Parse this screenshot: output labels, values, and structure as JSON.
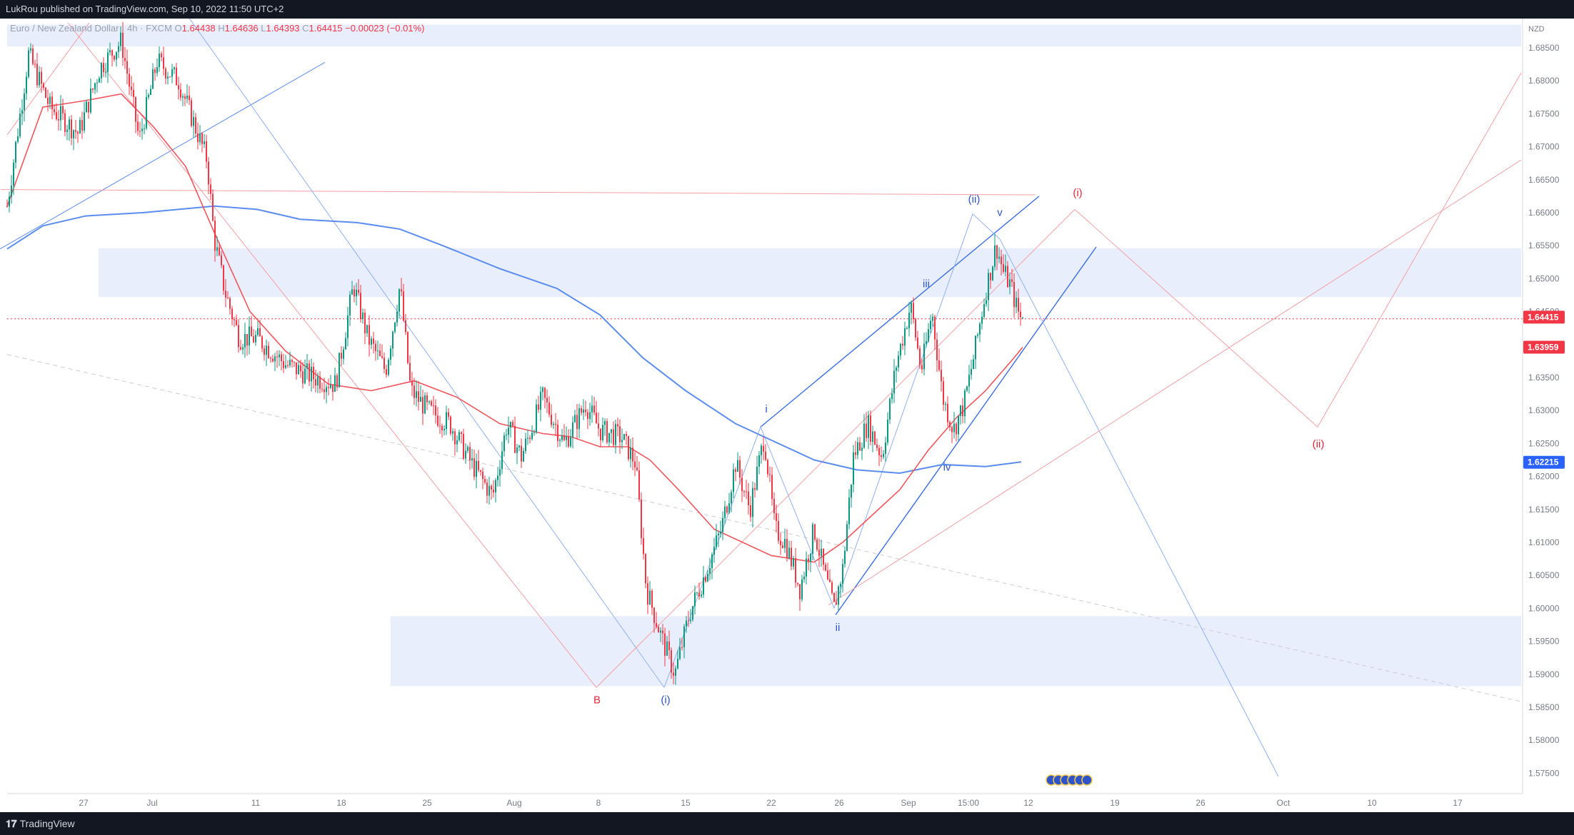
{
  "header": {
    "publisher": "LukRou published on TradingView.com, Sep 10, 2022 11:50 UTC+2"
  },
  "footer": {
    "brand": "TradingView"
  },
  "symbol": {
    "name": "Euro / New Zealand Dollar",
    "interval": "4h",
    "exchange": "FXCM",
    "open_label": "O",
    "open": "1.64438",
    "high_label": "H",
    "high": "1.64636",
    "low_label": "L",
    "low": "1.64393",
    "close_label": "C",
    "close": "1.64415",
    "change": "−0.00023 (−0.01%)"
  },
  "colors": {
    "up": "#089981",
    "down": "#f23645",
    "ma_red": "#f0565c",
    "ma_blue": "#5b8def",
    "zone": "#e8eefc",
    "wave_blue": "#2f54c7",
    "wave_red": "#e0263a"
  },
  "chart_data": {
    "type": "candlestick",
    "currency": "NZD",
    "ylim": [
      1.5745,
      1.689
    ],
    "y_ticks": [
      "1.68500",
      "1.68000",
      "1.67500",
      "1.67000",
      "1.66500",
      "1.66000",
      "1.65500",
      "1.65000",
      "1.64500",
      "1.64000",
      "1.63500",
      "1.63000",
      "1.62500",
      "1.62000",
      "1.61500",
      "1.61000",
      "1.60500",
      "1.60000",
      "1.59500",
      "1.59000",
      "1.58500",
      "1.58000",
      "1.57500"
    ],
    "x_labels": [
      {
        "label": "27",
        "x": 117
      },
      {
        "label": "Jul",
        "x": 213
      },
      {
        "label": "11",
        "x": 358
      },
      {
        "label": "18",
        "x": 478
      },
      {
        "label": "25",
        "x": 598
      },
      {
        "label": "Aug",
        "x": 720
      },
      {
        "label": "8",
        "x": 838
      },
      {
        "label": "15",
        "x": 960
      },
      {
        "label": "22",
        "x": 1080
      },
      {
        "label": "26",
        "x": 1175
      },
      {
        "label": "Sep",
        "x": 1272
      },
      {
        "label": "15:00",
        "x": 1356
      },
      {
        "label": "12",
        "x": 1440
      },
      {
        "label": "19",
        "x": 1561
      },
      {
        "label": "26",
        "x": 1681
      },
      {
        "label": "Oct",
        "x": 1797
      },
      {
        "label": "10",
        "x": 1921
      },
      {
        "label": "17",
        "x": 2041
      }
    ],
    "price_labels": [
      {
        "value": "1.64415",
        "price": 1.64415,
        "color": "#f23645"
      },
      {
        "value": "1.63959",
        "price": 1.63959,
        "color": "#f23645"
      },
      {
        "value": "1.62215",
        "price": 1.62215,
        "color": "#2962ff"
      }
    ],
    "close_path": [
      [
        10,
        1.661
      ],
      [
        40,
        1.684
      ],
      [
        70,
        1.676
      ],
      [
        110,
        1.672
      ],
      [
        140,
        1.682
      ],
      [
        170,
        1.686
      ],
      [
        195,
        1.671
      ],
      [
        220,
        1.683
      ],
      [
        250,
        1.68
      ],
      [
        270,
        1.674
      ],
      [
        290,
        1.668
      ],
      [
        300,
        1.656
      ],
      [
        315,
        1.648
      ],
      [
        335,
        1.641
      ],
      [
        360,
        1.641
      ],
      [
        400,
        1.637
      ],
      [
        440,
        1.635
      ],
      [
        470,
        1.634
      ],
      [
        495,
        1.649
      ],
      [
        515,
        1.641
      ],
      [
        540,
        1.636
      ],
      [
        560,
        1.649
      ],
      [
        575,
        1.633
      ],
      [
        600,
        1.63
      ],
      [
        630,
        1.628
      ],
      [
        660,
        1.622
      ],
      [
        690,
        1.617
      ],
      [
        710,
        1.628
      ],
      [
        730,
        1.623
      ],
      [
        760,
        1.632
      ],
      [
        790,
        1.625
      ],
      [
        820,
        1.631
      ],
      [
        840,
        1.627
      ],
      [
        870,
        1.626
      ],
      [
        890,
        1.622
      ],
      [
        905,
        1.603
      ],
      [
        925,
        1.596
      ],
      [
        945,
        1.59
      ],
      [
        965,
        1.599
      ],
      [
        990,
        1.606
      ],
      [
        1010,
        1.612
      ],
      [
        1030,
        1.622
      ],
      [
        1050,
        1.615
      ],
      [
        1070,
        1.626
      ],
      [
        1085,
        1.612
      ],
      [
        1100,
        1.61
      ],
      [
        1120,
        1.603
      ],
      [
        1140,
        1.612
      ],
      [
        1155,
        1.605
      ],
      [
        1168,
        1.6
      ],
      [
        1180,
        1.606
      ],
      [
        1195,
        1.623
      ],
      [
        1215,
        1.628
      ],
      [
        1235,
        1.623
      ],
      [
        1255,
        1.637
      ],
      [
        1275,
        1.646
      ],
      [
        1290,
        1.636
      ],
      [
        1305,
        1.645
      ],
      [
        1320,
        1.632
      ],
      [
        1335,
        1.627
      ],
      [
        1350,
        1.631
      ],
      [
        1365,
        1.639
      ],
      [
        1380,
        1.648
      ],
      [
        1395,
        1.655
      ],
      [
        1405,
        1.651
      ],
      [
        1415,
        1.649
      ],
      [
        1425,
        1.645
      ],
      [
        1432,
        1.6441
      ]
    ],
    "ma_red": [
      [
        10,
        1.661
      ],
      [
        60,
        1.676
      ],
      [
        120,
        1.677
      ],
      [
        170,
        1.678
      ],
      [
        215,
        1.673
      ],
      [
        260,
        1.667
      ],
      [
        300,
        1.657
      ],
      [
        350,
        1.645
      ],
      [
        400,
        1.639
      ],
      [
        460,
        1.634
      ],
      [
        520,
        1.633
      ],
      [
        580,
        1.6345
      ],
      [
        640,
        1.632
      ],
      [
        700,
        1.628
      ],
      [
        760,
        1.6265
      ],
      [
        800,
        1.626
      ],
      [
        840,
        1.6245
      ],
      [
        880,
        1.6245
      ],
      [
        910,
        1.6225
      ],
      [
        950,
        1.618
      ],
      [
        1000,
        1.612
      ],
      [
        1040,
        1.61
      ],
      [
        1080,
        1.608
      ],
      [
        1110,
        1.6075
      ],
      [
        1140,
        1.607
      ],
      [
        1180,
        1.61
      ],
      [
        1220,
        1.614
      ],
      [
        1260,
        1.618
      ],
      [
        1300,
        1.624
      ],
      [
        1340,
        1.629
      ],
      [
        1380,
        1.633
      ],
      [
        1420,
        1.638
      ],
      [
        1432,
        1.6396
      ]
    ],
    "ma_blue": [
      [
        10,
        1.6545
      ],
      [
        60,
        1.658
      ],
      [
        120,
        1.6595
      ],
      [
        200,
        1.66
      ],
      [
        250,
        1.6605
      ],
      [
        300,
        1.661
      ],
      [
        360,
        1.6605
      ],
      [
        420,
        1.659
      ],
      [
        500,
        1.6585
      ],
      [
        560,
        1.6575
      ],
      [
        620,
        1.655
      ],
      [
        700,
        1.6515
      ],
      [
        780,
        1.6485
      ],
      [
        840,
        1.6445
      ],
      [
        900,
        1.638
      ],
      [
        960,
        1.633
      ],
      [
        1030,
        1.628
      ],
      [
        1090,
        1.625
      ],
      [
        1140,
        1.6225
      ],
      [
        1200,
        1.621
      ],
      [
        1260,
        1.6205
      ],
      [
        1320,
        1.6218
      ],
      [
        1380,
        1.6215
      ],
      [
        1430,
        1.6222
      ]
    ],
    "zones": [
      {
        "x1": 10,
        "x2": 2130,
        "p1": 1.6885,
        "p2": 1.6852
      },
      {
        "x1": 138,
        "x2": 2130,
        "p1": 1.6546,
        "p2": 1.6472
      },
      {
        "x1": 547,
        "x2": 2130,
        "p1": 1.5988,
        "p2": 1.5882
      }
    ],
    "wave_labels": [
      {
        "text": "B",
        "x": 836,
        "price": 1.5856,
        "color": "#e0263a"
      },
      {
        "text": "(i)",
        "x": 932,
        "price": 1.5856,
        "color": "#2f54c7"
      },
      {
        "text": "i",
        "x": 1073,
        "price": 1.6297,
        "color": "#2f54c7"
      },
      {
        "text": "ii",
        "x": 1173,
        "price": 1.5966,
        "color": "#2f54c7"
      },
      {
        "text": "iii",
        "x": 1297,
        "price": 1.6487,
        "color": "#2f54c7"
      },
      {
        "text": "iv",
        "x": 1326,
        "price": 1.6209,
        "color": "#2f54c7"
      },
      {
        "text": "v",
        "x": 1400,
        "price": 1.6595,
        "color": "#2f54c7"
      },
      {
        "text": "(ii)",
        "x": 1364,
        "price": 1.6615,
        "color": "#2f54c7"
      },
      {
        "text": "(i)",
        "x": 1509,
        "price": 1.6625,
        "color": "#e0263a"
      },
      {
        "text": "(ii)",
        "x": 1846,
        "price": 1.6244,
        "color": "#e0263a"
      }
    ],
    "ellipsis_icons": 6
  }
}
